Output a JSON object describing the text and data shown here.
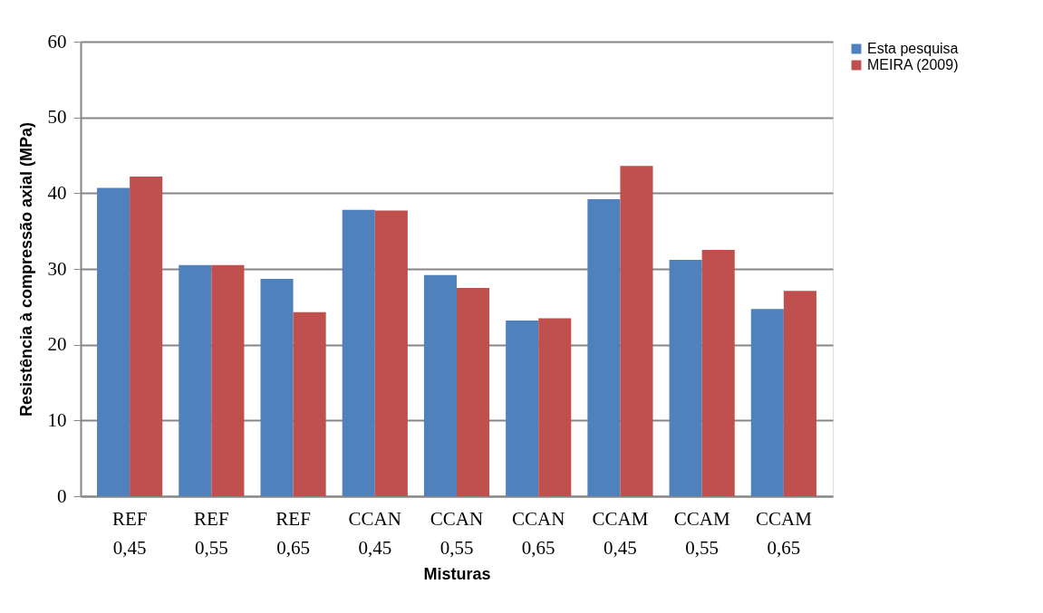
{
  "chart_data": {
    "type": "bar",
    "xlabel": "Misturas",
    "ylabel": "Resistência à compressão axial (MPa)",
    "categories": [
      "REF 0,45",
      "REF 0,55",
      "REF 0,65",
      "CCAN 0,45",
      "CCAN 0,55",
      "CCAN 0,65",
      "CCAM 0,45",
      "CCAM 0,55",
      "CCAM 0,65"
    ],
    "series": [
      {
        "name": "Esta pesquisa",
        "color": "#4f81bd",
        "values": [
          40.7,
          30.5,
          28.7,
          37.8,
          29.2,
          23.2,
          39.2,
          31.2,
          24.7
        ]
      },
      {
        "name": "MEIRA (2009)",
        "color": "#c0504d",
        "values": [
          42.2,
          30.5,
          24.3,
          37.7,
          27.5,
          23.5,
          43.6,
          32.5,
          27.1
        ]
      }
    ],
    "ylim": [
      0,
      60
    ],
    "yticks": [
      0,
      10,
      20,
      30,
      40,
      50,
      60
    ],
    "grid": "y",
    "legend": "right"
  }
}
